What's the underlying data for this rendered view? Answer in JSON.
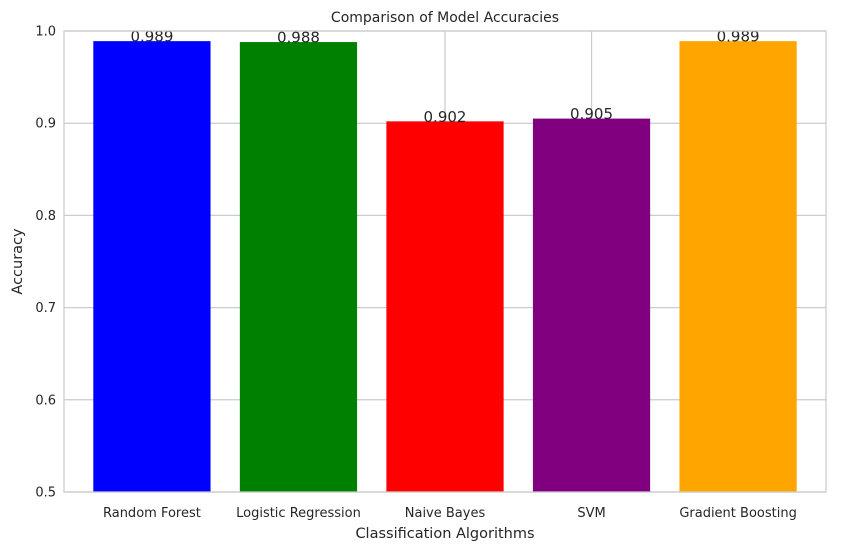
{
  "chart_data": {
    "type": "bar",
    "title": "Comparison of Model Accuracies",
    "xlabel": "Classification Algorithms",
    "ylabel": "Accuracy",
    "categories": [
      "Random Forest",
      "Logistic Regression",
      "Naive Bayes",
      "SVM",
      "Gradient Boosting"
    ],
    "values": [
      0.989,
      0.988,
      0.902,
      0.905,
      0.989
    ],
    "value_labels": [
      "0.989",
      "0.988",
      "0.902",
      "0.905",
      "0.989"
    ],
    "colors": [
      "#0000ff",
      "#008000",
      "#ff0000",
      "#800080",
      "#ffa500"
    ],
    "ylim": [
      0.5,
      1.0
    ],
    "yticks": [
      0.5,
      0.6,
      0.7,
      0.8,
      0.9,
      1.0
    ],
    "ytick_labels": [
      "0.5",
      "0.6",
      "0.7",
      "0.8",
      "0.9",
      "1.0"
    ],
    "grid": true,
    "legend": false
  }
}
